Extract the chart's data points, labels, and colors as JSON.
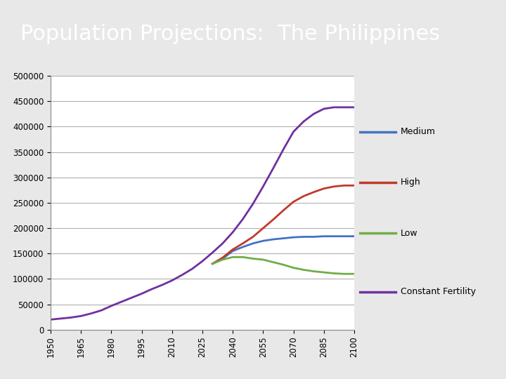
{
  "title": "Population Projections:  The Philippines",
  "title_bg_color": "#4a7a8a",
  "title_text_color": "#ffffff",
  "chart_bg_color": "#e8e8e8",
  "plot_bg_color": "#ffffff",
  "years": [
    1950,
    1955,
    1960,
    1965,
    1970,
    1975,
    1980,
    1985,
    1990,
    1995,
    2000,
    2005,
    2010,
    2015,
    2020,
    2025,
    2030,
    2035,
    2040,
    2045,
    2050,
    2055,
    2060,
    2065,
    2070,
    2075,
    2080,
    2085,
    2090,
    2095,
    2100
  ],
  "medium": [
    null,
    null,
    null,
    null,
    null,
    null,
    null,
    null,
    null,
    null,
    null,
    null,
    null,
    null,
    null,
    null,
    130000,
    140000,
    155000,
    163000,
    170000,
    175000,
    178000,
    180000,
    182000,
    183000,
    183000,
    184000,
    184000,
    184000,
    184000
  ],
  "high": [
    null,
    null,
    null,
    null,
    null,
    null,
    null,
    null,
    null,
    null,
    null,
    null,
    null,
    null,
    null,
    null,
    130000,
    142000,
    158000,
    170000,
    183000,
    200000,
    217000,
    235000,
    252000,
    263000,
    271000,
    278000,
    282000,
    284000,
    284000
  ],
  "low": [
    null,
    null,
    null,
    null,
    null,
    null,
    null,
    null,
    null,
    null,
    null,
    null,
    null,
    null,
    null,
    null,
    130000,
    138000,
    143000,
    143000,
    140000,
    138000,
    133000,
    128000,
    122000,
    118000,
    115000,
    113000,
    111000,
    110000,
    110000
  ],
  "const": [
    20000,
    22000,
    24000,
    27000,
    32000,
    38000,
    47000,
    55000,
    63000,
    71000,
    80000,
    88000,
    97000,
    108000,
    120000,
    135000,
    152000,
    170000,
    192000,
    218000,
    248000,
    282000,
    318000,
    355000,
    390000,
    410000,
    425000,
    435000,
    438000,
    438000,
    438000
  ],
  "medium_color": "#4472c4",
  "high_color": "#c0392b",
  "low_color": "#70ad47",
  "const_color": "#7030a0",
  "ylim": [
    0,
    500000
  ],
  "yticks": [
    0,
    50000,
    100000,
    150000,
    200000,
    250000,
    300000,
    350000,
    400000,
    450000,
    500000
  ],
  "xticks": [
    1950,
    1965,
    1980,
    1995,
    2010,
    2025,
    2040,
    2055,
    2070,
    2085,
    2100
  ]
}
